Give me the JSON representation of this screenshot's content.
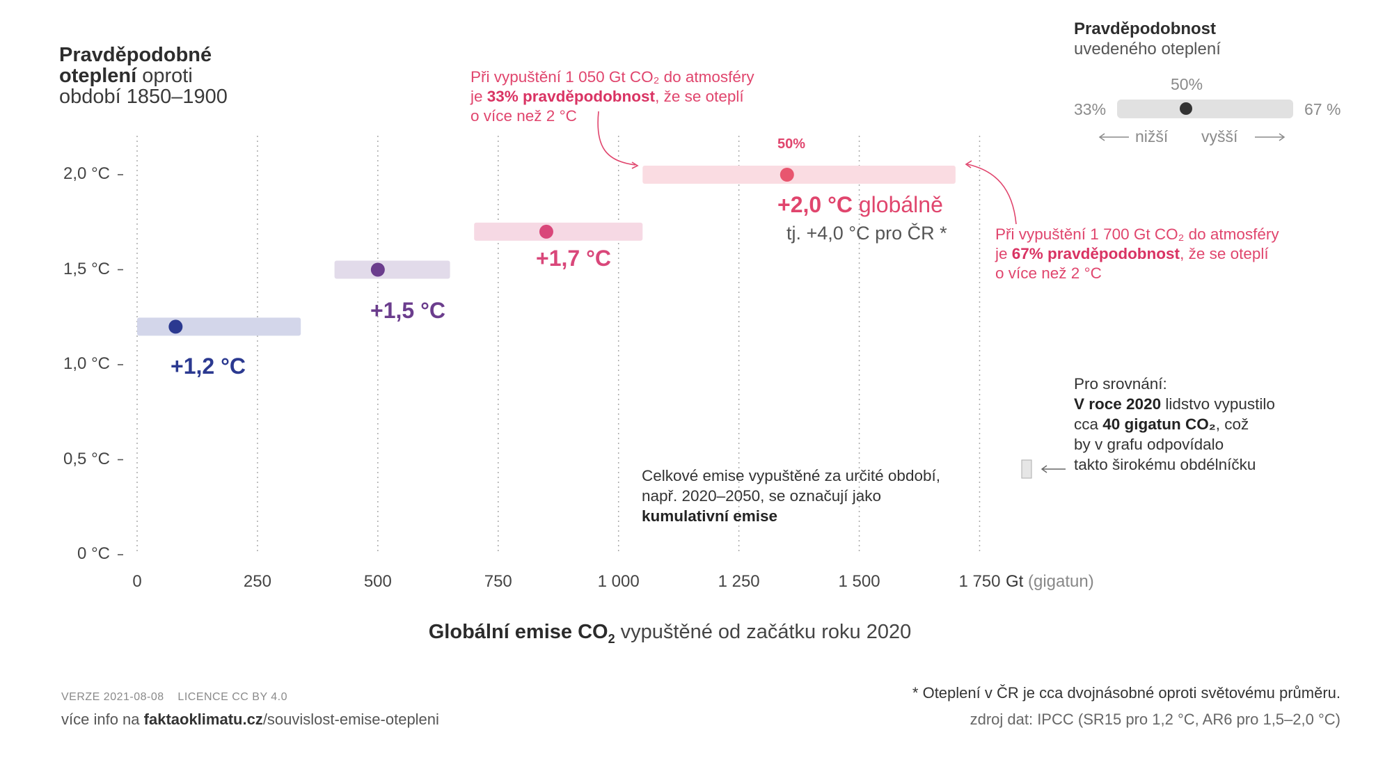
{
  "y_title": {
    "line1": "Pravděpodobné",
    "line2_bold": "oteplení",
    "line2_rest": " oproti",
    "line3": "období 1850–1900"
  },
  "x_title": {
    "bold": "Globální emise CO",
    "sub": "2",
    "rest": " vypuštěné od začátku roku 2020"
  },
  "x_unit": {
    "bold": "Gt",
    "rest": " (gigatun)"
  },
  "chart_data": {
    "type": "scatter",
    "title": "",
    "xlabel": "Globální emise CO₂ vypuštěné od začátku roku 2020",
    "ylabel": "Pravděpodobné oteplení oproti období 1850–1900",
    "xlim": [
      0,
      1750
    ],
    "ylim": [
      0,
      2.0
    ],
    "x_ticks": [
      0,
      250,
      500,
      750,
      1000,
      1250,
      1500,
      1750
    ],
    "x_tick_labels": [
      "0",
      "250",
      "500",
      "750",
      "1 000",
      "1 250",
      "1 500",
      "1 750"
    ],
    "y_ticks": [
      0,
      0.5,
      1.0,
      1.5,
      2.0
    ],
    "y_tick_labels": [
      "0 °C",
      "0,5 °C",
      "1,0 °C",
      "1,5 °C",
      "2,0 °C"
    ],
    "grid": "vertical dotted",
    "series": [
      {
        "label": "+1,2 °C",
        "warming": 1.2,
        "low_67": 0,
        "median_50": 80,
        "high_33": 340,
        "color": "#2b3990",
        "band": "#d3d6ea"
      },
      {
        "label": "+1,5 °C",
        "warming": 1.5,
        "low_67": 410,
        "median_50": 500,
        "high_33": 650,
        "color": "#6b3d8d",
        "band": "#e2dbea"
      },
      {
        "label": "+1,7 °C",
        "warming": 1.7,
        "low_67": 700,
        "median_50": 850,
        "high_33": 1050,
        "color": "#d9477a",
        "band": "#f6d9e4"
      },
      {
        "label": "+2,0 °C",
        "warming": 2.0,
        "low_67": 1050,
        "median_50": 1350,
        "high_33": 1700,
        "color": "#e8566f",
        "band": "#fadce2"
      }
    ]
  },
  "pct50_label": "50%",
  "label_20_suffix": " globálně",
  "label_20_cz": "tj. +4,0 °C pro ČR *",
  "note_top": {
    "l1": "Při vypuštění 1 050 Gt CO₂ do atmosféry",
    "l2a": "je ",
    "l2b": "33% pravděpodobnost",
    "l2c": ", že se oteplí",
    "l3": "o více než 2 °C"
  },
  "note_right": {
    "l1": "Při vypuštění 1 700 Gt CO₂ do atmosféry",
    "l2a": "je ",
    "l2b": "67% pravděpodobnost",
    "l2c": ", že se oteplí",
    "l3": "o více než 2 °C"
  },
  "legend": {
    "title_bold": "Pravděpodobnost",
    "title_rest": "uvedeného oteplení",
    "p50": "50%",
    "p33": "33%",
    "p67": "67 %",
    "lower": "nižší",
    "higher": "vyšší"
  },
  "cum_note": {
    "l1": "Celkové emise vypuštěné za určité období,",
    "l2": "např. 2020–2050, se označují jako",
    "l3": "kumulativní emise"
  },
  "compare": {
    "l1": "Pro srovnání:",
    "l2b": "V roce 2020",
    "l2r": " lidstvo vypustilo",
    "l3a": "cca ",
    "l3b": "40 gigatun CO₂",
    "l3c": ", což",
    "l4": "by v grafu odpovídalo",
    "l5": "takto širokému obdélníčku"
  },
  "footer": {
    "version": "VERZE 2021-08-08",
    "license": "LICENCE CC BY 4.0",
    "link_a": "více info na ",
    "link_b": "faktaoklimatu.cz",
    "link_c": "/souvislost-emise-otepleni",
    "note": "* Oteplení v ČR je cca dvojnásobné oproti světovému průměru.",
    "source": "zdroj dat: IPCC (SR15 pro 1,2 °C, AR6 pro 1,5–2,0 °C)"
  }
}
